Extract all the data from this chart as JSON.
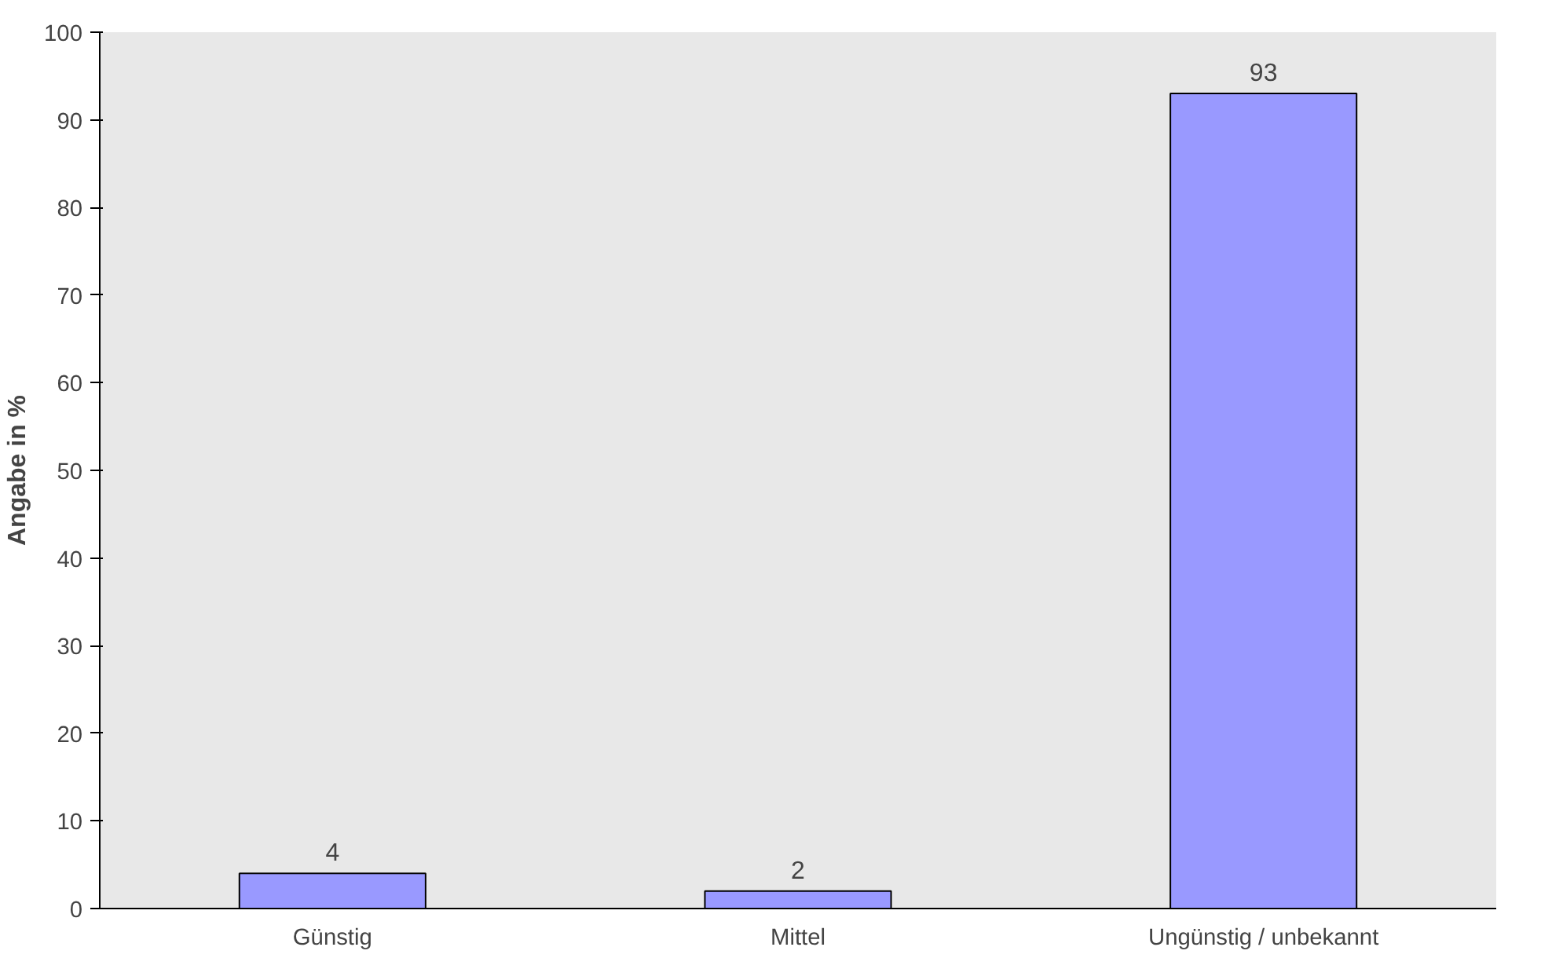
{
  "chart_data": {
    "type": "bar",
    "ylabel": "Angabe in %",
    "categories": [
      "Günstig",
      "Mittel",
      "Ungünstig / unbekannt"
    ],
    "values": [
      4,
      2,
      93
    ],
    "color": "#9999ff",
    "ylim": [
      0,
      100
    ],
    "yticks": [
      0,
      10,
      20,
      30,
      40,
      50,
      60,
      70,
      80,
      90,
      100
    ],
    "data_labels": true
  }
}
